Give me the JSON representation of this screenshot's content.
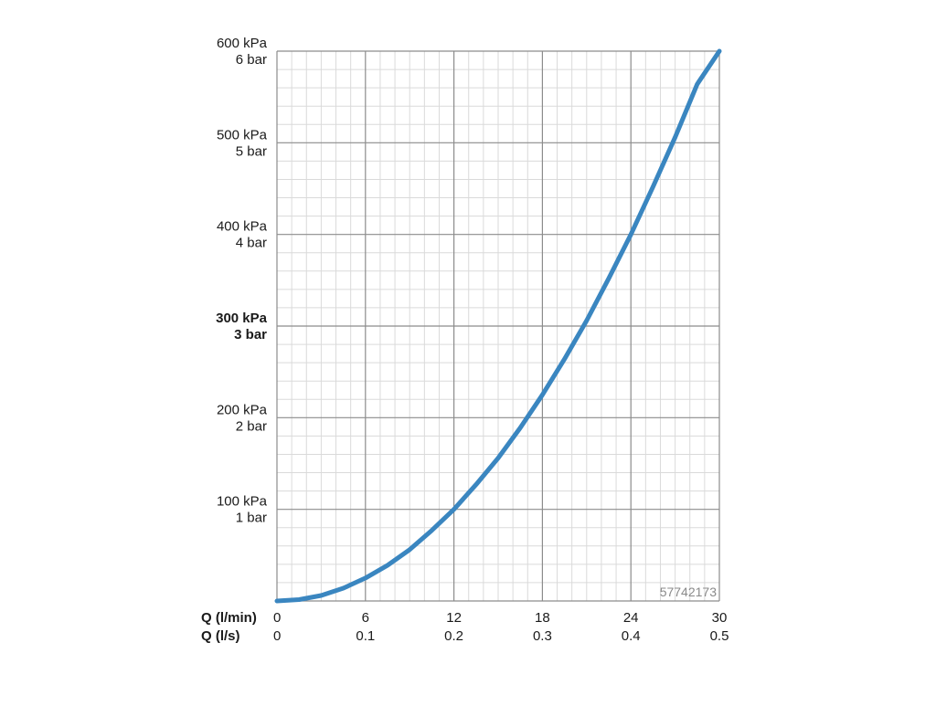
{
  "chart_data": {
    "type": "line",
    "title": "",
    "code_label": "57742173",
    "colors": {
      "curve": "#3a86c0",
      "major_grid": "#8c8c8c",
      "minor_grid": "#dadada"
    },
    "grid": true,
    "xlim": [
      0,
      30
    ],
    "ylim": [
      0,
      600
    ],
    "x_axis_rows": [
      {
        "label": "Q (l/min)",
        "ticks": [
          "0",
          "6",
          "12",
          "18",
          "24",
          "30"
        ]
      },
      {
        "label": "Q (l/s)",
        "ticks": [
          "0",
          "0.1",
          "0.2",
          "0.3",
          "0.4",
          "0.5"
        ]
      }
    ],
    "x_tick_values": [
      0,
      6,
      12,
      18,
      24,
      30
    ],
    "y_ticks": [
      {
        "value": 100,
        "line1": "100 kPa",
        "line2": "1 bar",
        "bold": false
      },
      {
        "value": 200,
        "line1": "200 kPa",
        "line2": "2 bar",
        "bold": false
      },
      {
        "value": 300,
        "line1": "300 kPa",
        "line2": "3 bar",
        "bold": true
      },
      {
        "value": 400,
        "line1": "400 kPa",
        "line2": "4 bar",
        "bold": false
      },
      {
        "value": 500,
        "line1": "500 kPa",
        "line2": "5 bar",
        "bold": false
      },
      {
        "value": 600,
        "line1": "600 kPa",
        "line2": "6 bar",
        "bold": false
      }
    ],
    "series": [
      {
        "x": [
          0,
          1.5,
          3,
          4.5,
          6,
          7.5,
          9,
          10.5,
          12,
          13.5,
          15,
          16.5,
          18,
          19.5,
          21,
          22.5,
          24,
          25.5,
          27,
          28.5,
          30
        ],
        "values": [
          0,
          1.5,
          6,
          14,
          25,
          39,
          56,
          77,
          100,
          127,
          156,
          189,
          225,
          264,
          306,
          352,
          400,
          452,
          506,
          564,
          600
        ]
      }
    ]
  }
}
